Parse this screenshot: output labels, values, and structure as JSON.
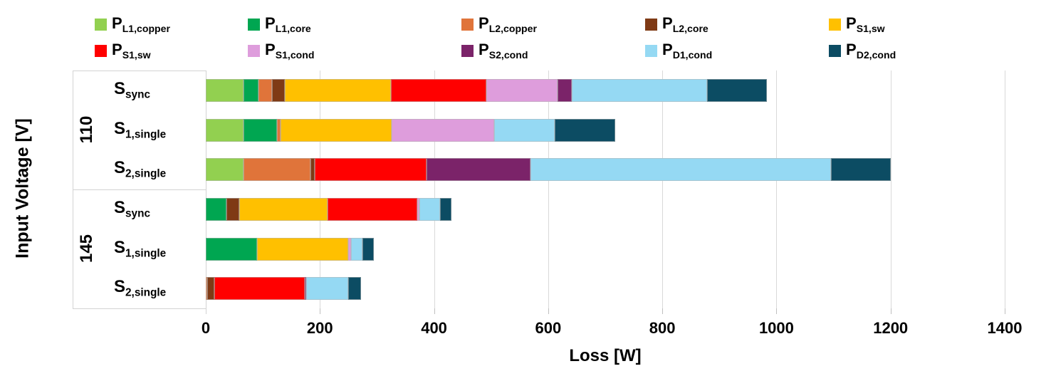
{
  "chart_data": {
    "type": "bar",
    "variant": "horizontal-stacked",
    "xlabel": "Loss [W]",
    "ylabel": "Input Voltage [V]",
    "xlim": [
      0,
      1400
    ],
    "xticks": [
      0,
      200,
      400,
      600,
      800,
      1000,
      1200,
      1400
    ],
    "grid": "vertical-light-gray",
    "legend_position": "top-two-rows",
    "series": [
      {
        "name": "P",
        "sub": "L1,copper",
        "color": "#92D050"
      },
      {
        "name": "P",
        "sub": "L1,core",
        "color": "#00A651"
      },
      {
        "name": "P",
        "sub": "L2,copper",
        "color": "#E0743A"
      },
      {
        "name": "P",
        "sub": "L2,core",
        "color": "#7F3A15"
      },
      {
        "name": "P",
        "sub": "S1,sw",
        "color": "#FFC000"
      },
      {
        "name": "P",
        "sub": "S1,sw",
        "color": "#FF0000"
      },
      {
        "name": "P",
        "sub": "S1,cond",
        "color": "#DE9DDC"
      },
      {
        "name": "P",
        "sub": "S2,cond",
        "color": "#7B2369"
      },
      {
        "name": "P",
        "sub": "D1,cond",
        "color": "#95D9F3"
      },
      {
        "name": "P",
        "sub": "D2,cond",
        "color": "#0C4C63"
      }
    ],
    "groups": [
      {
        "label": "110",
        "bars": [
          {
            "name": "S",
            "sub": "sync",
            "values": [
              66,
              26,
              24,
              22,
              187,
              167,
              125,
              24,
              237,
              105
            ]
          },
          {
            "name": "S",
            "sub": "1,single",
            "values": [
              66,
              59,
              6,
              0,
              195,
              0,
              180,
              0,
              105,
              106
            ]
          },
          {
            "name": "S",
            "sub": "2,single",
            "values": [
              66,
              0,
              118,
              7,
              0,
              196,
              0,
              182,
              526,
              106
            ]
          }
        ]
      },
      {
        "label": "145",
        "bars": [
          {
            "name": "S",
            "sub": "sync",
            "values": [
              0,
              36,
              0,
              23,
              155,
              156,
              4,
              0,
              37,
              20
            ]
          },
          {
            "name": "S",
            "sub": "1,single",
            "values": [
              0,
              90,
              0,
              0,
              160,
              0,
              5,
              0,
              20,
              19
            ]
          },
          {
            "name": "S",
            "sub": "2,single",
            "values": [
              0,
              0,
              3,
              12,
              0,
              158,
              0,
              3,
              74,
              22
            ]
          }
        ]
      }
    ],
    "colors": {
      "grid": "#D9D9D9",
      "text": "#000000",
      "background": "#FFFFFF"
    }
  }
}
